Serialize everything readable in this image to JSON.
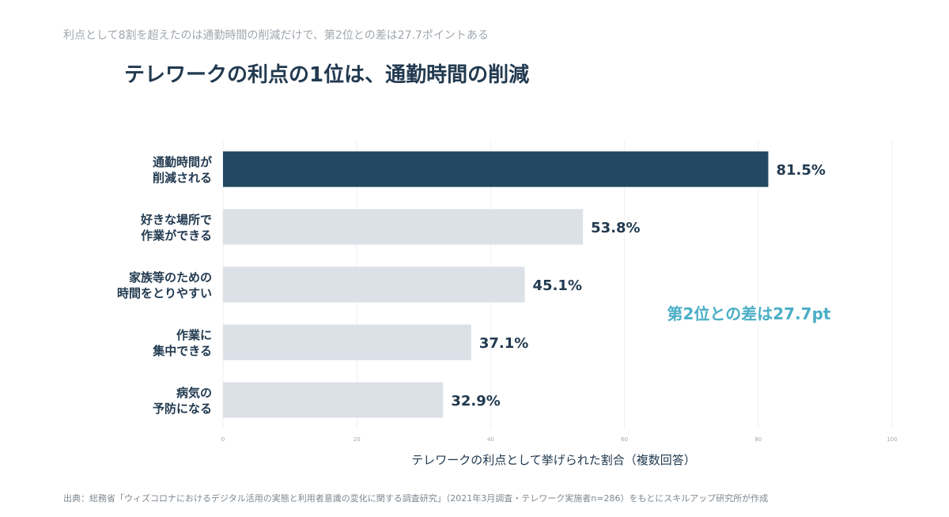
{
  "subtitle": "利点として8割を超えたのは通勤時間の削減だけで、第2位との差は27.7ポイントある",
  "title": "テレワークの利点の1位は、通勤時間の削減",
  "source": "出典：総務省「ウィズコロナにおけるデジタル活用の実態と利用者意識の変化に関する調査研究」（2021年3月調査・テレワーク実施者n=286）をもとにスキルアップ研究所が作成",
  "chart_data": {
    "type": "bar",
    "orientation": "horizontal",
    "categories": [
      [
        "通勤時間が",
        "削減される"
      ],
      [
        "好きな場所で",
        "作業ができる"
      ],
      [
        "家族等のための",
        "時間をとりやすい"
      ],
      [
        "作業に",
        "集中できる"
      ],
      [
        "病気の",
        "予防になる"
      ]
    ],
    "values": [
      81.5,
      53.8,
      45.1,
      37.1,
      32.9
    ],
    "value_labels": [
      "81.5%",
      "53.8%",
      "45.1%",
      "37.1%",
      "32.9%"
    ],
    "xlabel": "テレワークの利点として挙げられた割合（複数回答）",
    "xlim": [
      0,
      100
    ],
    "xticks": [
      "0",
      "20",
      "40",
      "60",
      "80",
      "100"
    ],
    "grid": true,
    "highlight_index": 0,
    "annotation": "第2位との差は27.7pt",
    "colors": {
      "highlight": "#224862",
      "other": "#dce1e8",
      "text": "#223a50",
      "annotation": "#4aaec6"
    }
  }
}
